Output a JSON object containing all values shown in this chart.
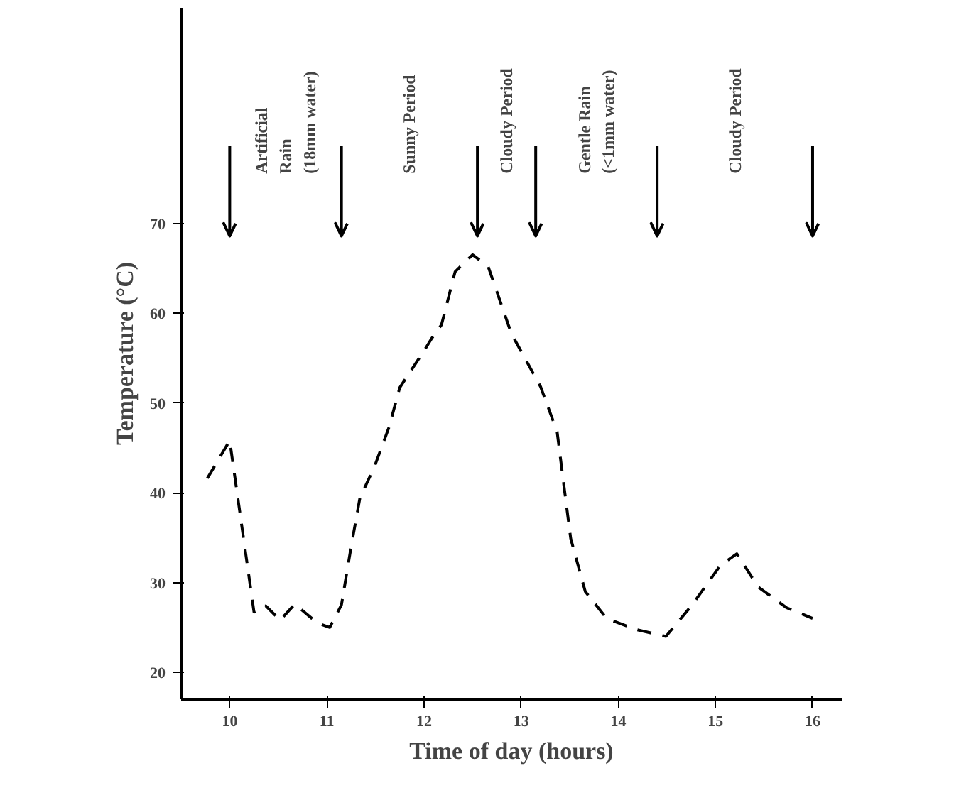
{
  "chart_data": {
    "type": "line",
    "xlabel": "Time of day (hours)",
    "ylabel": "Temperature (°C)",
    "x": [
      9.77,
      10.0,
      10.25,
      10.37,
      10.52,
      10.67,
      10.9,
      11.03,
      11.15,
      11.25,
      11.34,
      11.49,
      11.64,
      11.75,
      12.0,
      12.08,
      12.18,
      12.32,
      12.5,
      12.66,
      12.9,
      13.2,
      13.37,
      13.44,
      13.51,
      13.66,
      13.88,
      14.17,
      14.49,
      14.76,
      15.05,
      15.22,
      15.44,
      15.73,
      16.0
    ],
    "series": [
      {
        "color": "#000000",
        "line_style": "dashed",
        "values": [
          41.6,
          45.8,
          26.7,
          27.4,
          25.8,
          27.6,
          25.5,
          25.0,
          27.5,
          34,
          39.4,
          42.9,
          47.3,
          51.7,
          55.8,
          57.2,
          58.7,
          64.6,
          66.5,
          65.2,
          57.7,
          51.8,
          46.8,
          40.8,
          34.9,
          29,
          26,
          24.8,
          24,
          27.5,
          31.9,
          33.2,
          29.5,
          27.2,
          26
        ]
      }
    ],
    "xlim": [
      9.5,
      16.3
    ],
    "ylim": [
      17,
      94
    ],
    "xticks": [
      10,
      11,
      12,
      13,
      14,
      15,
      16
    ],
    "yticks": [
      20,
      30,
      40,
      50,
      60,
      70
    ],
    "grid": false,
    "marker": "none",
    "ref_lines": [
      {
        "axis": "x",
        "value": 10.0
      },
      {
        "axis": "x",
        "value": 11.15
      },
      {
        "axis": "x",
        "value": 12.55
      },
      {
        "axis": "x",
        "value": 13.15
      },
      {
        "axis": "x",
        "value": 14.4
      },
      {
        "axis": "x",
        "value": 16.0
      }
    ],
    "annotations": [
      "Artificial\nRain\n(18mm water)",
      "Sunny Period",
      "Cloudy Period",
      "Gentle Rain\n(<1mm water)",
      "Cloudy Period"
    ]
  }
}
